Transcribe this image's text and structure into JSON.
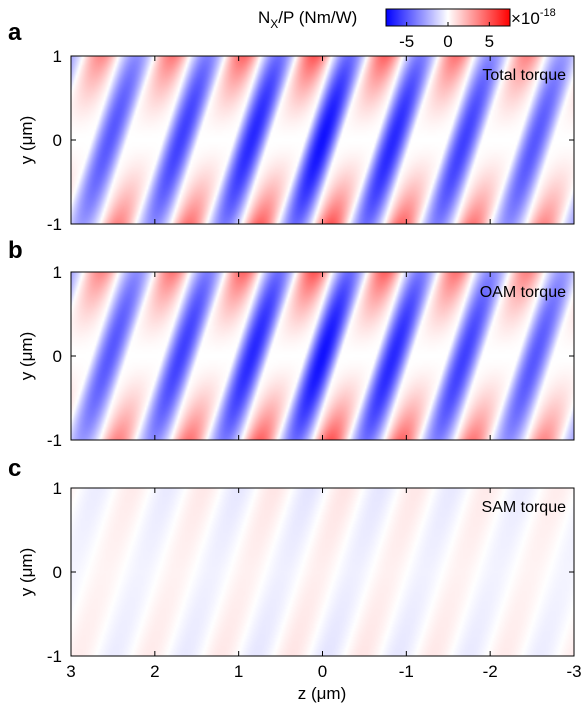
{
  "colorbar": {
    "label_main": "N",
    "label_sub": "X",
    "label_rest": "/P (Nm/W)",
    "ticks": [
      "-5",
      "0",
      "5"
    ],
    "tick_values": [
      -5,
      0,
      5
    ],
    "range": [
      -7.5,
      7.5
    ],
    "multiplier_base": "×10",
    "multiplier_exp": "-18",
    "colors": {
      "negative": "#0000ff",
      "zero": "#ffffff",
      "positive": "#ff0000"
    }
  },
  "chart_data": [
    {
      "type": "heatmap",
      "panel_letter": "a",
      "annotation": "Total torque",
      "xlabel": "",
      "ylabel": "y (μm)",
      "xlim": [
        3,
        -3
      ],
      "ylim": [
        -1,
        1
      ],
      "yticks": [
        -1,
        0,
        1
      ],
      "ytick_labels": [
        "-1",
        "0",
        "1"
      ],
      "xticks": [
        3,
        2,
        1,
        0,
        -1,
        -2,
        -3
      ],
      "xtick_labels": [],
      "stripe_period_um": 0.85,
      "stripe_tilt_um": 0.32,
      "peak_negative": -7,
      "peak_positive": 5
    },
    {
      "type": "heatmap",
      "panel_letter": "b",
      "annotation": "OAM torque",
      "xlabel": "",
      "ylabel": "y (μm)",
      "xlim": [
        3,
        -3
      ],
      "ylim": [
        -1,
        1
      ],
      "yticks": [
        -1,
        0,
        1
      ],
      "ytick_labels": [
        "-1",
        "0",
        "1"
      ],
      "xticks": [
        3,
        2,
        1,
        0,
        -1,
        -2,
        -3
      ],
      "xtick_labels": [],
      "stripe_period_um": 0.85,
      "stripe_tilt_um": 0.32,
      "peak_negative": -7,
      "peak_positive": 5
    },
    {
      "type": "heatmap",
      "panel_letter": "c",
      "annotation": "SAM torque",
      "xlabel": "z (μm)",
      "ylabel": "y (μm)",
      "xlim": [
        3,
        -3
      ],
      "ylim": [
        -1,
        1
      ],
      "yticks": [
        -1,
        0,
        1
      ],
      "ytick_labels": [
        "-1",
        "0",
        "1"
      ],
      "xticks": [
        3,
        2,
        1,
        0,
        -1,
        -2,
        -3
      ],
      "xtick_labels": [
        "3",
        "2",
        "1",
        "0",
        "-1",
        "-2",
        "-3"
      ],
      "stripe_period_um": 0.85,
      "stripe_tilt_um": 0.32,
      "peak_negative": -0.8,
      "peak_positive": 0.8
    }
  ]
}
